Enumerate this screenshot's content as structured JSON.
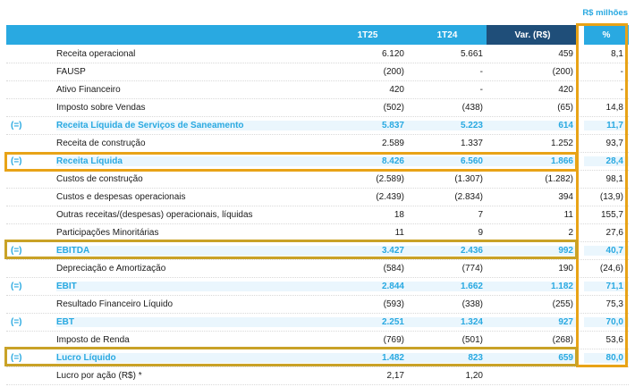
{
  "unit_label": "R$ milhões",
  "columns": [
    "1T25",
    "1T24",
    "Var. (R$)",
    "%"
  ],
  "rows": [
    {
      "prefix": "",
      "label": "Receita operacional",
      "q1t25": "6.120",
      "q1t24": "5.661",
      "var": "459",
      "pct": "8,1",
      "highlight": false
    },
    {
      "prefix": "",
      "label": "FAUSP",
      "q1t25": "(200)",
      "q1t24": "-",
      "var": "(200)",
      "pct": "-",
      "highlight": false
    },
    {
      "prefix": "",
      "label": "Ativo Financeiro",
      "q1t25": "420",
      "q1t24": "-",
      "var": "420",
      "pct": "-",
      "highlight": false
    },
    {
      "prefix": "",
      "label": "Imposto sobre Vendas",
      "q1t25": "(502)",
      "q1t24": "(438)",
      "var": "(65)",
      "pct": "14,8",
      "highlight": false
    },
    {
      "prefix": "(=)",
      "label": "Receita Líquida de Serviços de Saneamento",
      "q1t25": "5.837",
      "q1t24": "5.223",
      "var": "614",
      "pct": "11,7",
      "highlight": true
    },
    {
      "prefix": "",
      "label": "Receita de construção",
      "q1t25": "2.589",
      "q1t24": "1.337",
      "var": "1.252",
      "pct": "93,7",
      "highlight": false
    },
    {
      "prefix": "(=)",
      "label": "Receita Líquida",
      "q1t25": "8.426",
      "q1t24": "6.560",
      "var": "1.866",
      "pct": "28,4",
      "highlight": true
    },
    {
      "prefix": "",
      "label": "Custos de construção",
      "q1t25": "(2.589)",
      "q1t24": "(1.307)",
      "var": "(1.282)",
      "pct": "98,1",
      "highlight": false
    },
    {
      "prefix": "",
      "label": "Custos e despesas operacionais",
      "q1t25": "(2.439)",
      "q1t24": "(2.834)",
      "var": "394",
      "pct": "(13,9)",
      "highlight": false
    },
    {
      "prefix": "",
      "label": "Outras receitas/(despesas) operacionais, líquidas",
      "q1t25": "18",
      "q1t24": "7",
      "var": "11",
      "pct": "155,7",
      "highlight": false
    },
    {
      "prefix": "",
      "label": "Participações Minoritárias",
      "q1t25": "11",
      "q1t24": "9",
      "var": "2",
      "pct": "27,6",
      "highlight": false
    },
    {
      "prefix": "(=)",
      "label": "EBITDA",
      "q1t25": "3.427",
      "q1t24": "2.436",
      "var": "992",
      "pct": "40,7",
      "highlight": true
    },
    {
      "prefix": "",
      "label": "Depreciação e Amortização",
      "q1t25": "(584)",
      "q1t24": "(774)",
      "var": "190",
      "pct": "(24,6)",
      "highlight": false
    },
    {
      "prefix": "(=)",
      "label": "EBIT",
      "q1t25": "2.844",
      "q1t24": "1.662",
      "var": "1.182",
      "pct": "71,1",
      "highlight": true
    },
    {
      "prefix": "",
      "label": "Resultado Financeiro Líquido",
      "q1t25": "(593)",
      "q1t24": "(338)",
      "var": "(255)",
      "pct": "75,3",
      "highlight": false
    },
    {
      "prefix": "(=)",
      "label": "EBT",
      "q1t25": "2.251",
      "q1t24": "1.324",
      "var": "927",
      "pct": "70,0",
      "highlight": true
    },
    {
      "prefix": "",
      "label": "Imposto de Renda",
      "q1t25": "(769)",
      "q1t24": "(501)",
      "var": "(268)",
      "pct": "53,6",
      "highlight": false
    },
    {
      "prefix": "(=)",
      "label": "Lucro Líquido",
      "q1t25": "1.482",
      "q1t24": "823",
      "var": "659",
      "pct": "80,0",
      "highlight": true
    },
    {
      "prefix": "",
      "label": "Lucro por ação (R$) *",
      "q1t25": "2,17",
      "q1t24": "1,20",
      "var": "",
      "pct": "",
      "highlight": false
    }
  ]
}
